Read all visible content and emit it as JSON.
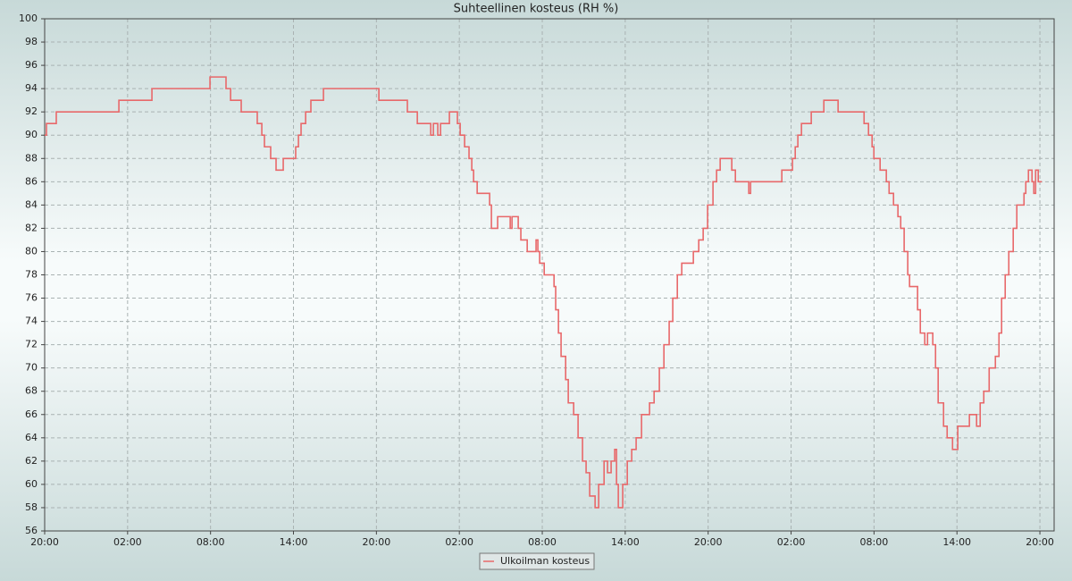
{
  "chart_data": {
    "type": "line",
    "title": "Suhteellinen kosteus (RH %)",
    "drawstyle": "steps-post",
    "grid": true,
    "legend": "bottom",
    "x": [
      0,
      0.13,
      0.84,
      5.37,
      7.76,
      11.96,
      13.12,
      13.45,
      13.57,
      14.22,
      15.38,
      15.58,
      15.71,
      15.9,
      16.35,
      16.74,
      17.26,
      18.16,
      18.36,
      18.55,
      18.88,
      19.26,
      20.17,
      24.18,
      26.24,
      26.96,
      27.93,
      28.12,
      28.44,
      28.64,
      29.28,
      29.86,
      30.06,
      30.38,
      30.7,
      30.9,
      31.03,
      31.29,
      32.19,
      32.32,
      32.77,
      33.68,
      33.81,
      34.26,
      34.45,
      34.91,
      35.55,
      35.68,
      35.81,
      36.14,
      36.85,
      36.97,
      37.17,
      37.36,
      37.69,
      37.88,
      38.27,
      38.59,
      38.91,
      39.17,
      39.43,
      39.82,
      40.08,
      40.47,
      40.72,
      40.98,
      41.24,
      41.37,
      41.5,
      41.82,
      42.15,
      42.47,
      42.79,
      43.18,
      43.76,
      44.09,
      44.47,
      44.8,
      45.18,
      45.44,
      45.77,
      46.09,
      46.93,
      47.32,
      47.64,
      47.96,
      48.35,
      48.61,
      48.87,
      49.71,
      49.97,
      50.94,
      51.07,
      53.33,
      54.1,
      54.3,
      54.49,
      54.75,
      55.46,
      56.37,
      57.4,
      59.28,
      59.6,
      59.86,
      59.99,
      60.44,
      60.89,
      61.09,
      61.41,
      61.73,
      61.93,
      62.18,
      62.44,
      62.57,
      63.15,
      63.35,
      63.67,
      63.87,
      64.25,
      64.45,
      64.64,
      65.03,
      65.29,
      65.68,
      66.06,
      66.9,
      67.42,
      67.68,
      67.94,
      68.33,
      68.78,
      69.04,
      69.23,
      69.49,
      69.75,
      70.07,
      70.33,
      70.85,
      70.98,
      71.17,
      71.43,
      71.56,
      71.69,
      71.88,
      72.14
    ],
    "series": [
      {
        "name": "Ulkoilman kosteus",
        "color": "#e8686a",
        "values": [
          90,
          91,
          92,
          93,
          94,
          95,
          94,
          93,
          93,
          92,
          91,
          91,
          90,
          89,
          88,
          87,
          88,
          89,
          90,
          91,
          92,
          93,
          94,
          93,
          92,
          91,
          90,
          91,
          90,
          91,
          92,
          91,
          90,
          89,
          88,
          87,
          86,
          85,
          84,
          82,
          83,
          82,
          83,
          82,
          81,
          80,
          81,
          80,
          79,
          78,
          77,
          75,
          73,
          71,
          69,
          67,
          66,
          64,
          62,
          61,
          59,
          58,
          60,
          62,
          61,
          62,
          63,
          60,
          58,
          60,
          62,
          63,
          64,
          66,
          67,
          68,
          70,
          72,
          74,
          76,
          78,
          79,
          80,
          81,
          82,
          84,
          86,
          87,
          88,
          87,
          86,
          85,
          86,
          87,
          88,
          89,
          90,
          91,
          92,
          93,
          92,
          91,
          90,
          89,
          88,
          87,
          86,
          85,
          84,
          83,
          82,
          80,
          78,
          77,
          75,
          73,
          72,
          73,
          72,
          70,
          67,
          65,
          64,
          63,
          65,
          66,
          65,
          67,
          68,
          70,
          71,
          73,
          76,
          78,
          80,
          82,
          84,
          85,
          86,
          87,
          86,
          85,
          87,
          86,
          86
        ]
      }
    ],
    "xlim": [
      0,
      73.03
    ],
    "xticks": [
      {
        "value": 0,
        "label": "20:00"
      },
      {
        "value": 6,
        "label": "02:00"
      },
      {
        "value": 12,
        "label": "08:00"
      },
      {
        "value": 18,
        "label": "14:00"
      },
      {
        "value": 24,
        "label": "20:00"
      },
      {
        "value": 30,
        "label": "02:00"
      },
      {
        "value": 36,
        "label": "08:00"
      },
      {
        "value": 42,
        "label": "14:00"
      },
      {
        "value": 48,
        "label": "20:00"
      },
      {
        "value": 54,
        "label": "02:00"
      },
      {
        "value": 60,
        "label": "08:00"
      },
      {
        "value": 66,
        "label": "14:00"
      },
      {
        "value": 72,
        "label": "20:00"
      }
    ],
    "ylim": [
      56,
      100
    ],
    "yticks": [
      56,
      58,
      60,
      62,
      64,
      66,
      68,
      70,
      72,
      74,
      76,
      78,
      80,
      82,
      84,
      86,
      88,
      90,
      92,
      94,
      96,
      98,
      100
    ]
  }
}
